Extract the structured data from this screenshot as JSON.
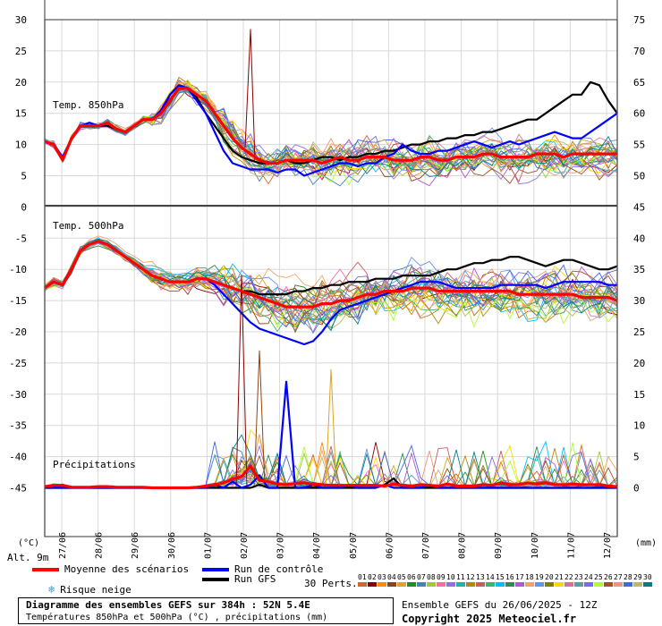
{
  "chart_data": {
    "type": "line",
    "title": "Diagramme des ensembles GEFS sur 384h : 52N 5.4E",
    "subtitle": "Températures 850hPa et 500hPa (°C) , précipitations (mm)",
    "run": "Ensemble GEFS du 26/06/2025 - 12Z",
    "copyright": "Copyright 2025 Meteociel.fr",
    "left_unit": "(°C)",
    "right_unit": "(mm)",
    "altitude": "Alt. 9m",
    "left_ticks": [
      30,
      25,
      20,
      15,
      10,
      5,
      0,
      -5,
      -10,
      -15,
      -20,
      -25,
      -30,
      -35,
      -40,
      -45
    ],
    "right_ticks": [
      75,
      70,
      65,
      60,
      55,
      50,
      45,
      40,
      35,
      30,
      25,
      20,
      15,
      10,
      5,
      0
    ],
    "date_labels": [
      "27/06",
      "28/06",
      "29/06",
      "30/06",
      "01/07",
      "02/07",
      "03/07",
      "04/07",
      "05/07",
      "06/07",
      "07/07",
      "08/07",
      "09/07",
      "10/07",
      "11/07",
      "12/07"
    ],
    "panels": [
      {
        "label": "Temp. 850hPa",
        "ylim": [
          0,
          30
        ],
        "unit": "°C"
      },
      {
        "label": "Temp. 500hPa",
        "ylim": [
          -45,
          -5
        ],
        "unit": "°C"
      },
      {
        "label": "Précipitations",
        "ylim": [
          0,
          75
        ],
        "unit": "mm"
      }
    ],
    "series_t850": [
      {
        "name": "Moyenne des scénarios",
        "color": "#ff0000",
        "values": [
          10.5,
          10,
          7.5,
          11,
          13,
          13,
          13,
          13.5,
          12.5,
          12,
          13,
          14,
          14,
          15,
          17,
          19,
          19,
          18,
          17,
          15,
          13,
          11,
          9.5,
          8.5,
          7.5,
          7,
          7,
          7.5,
          7.5,
          7.5,
          7.5,
          7,
          7.5,
          8,
          7.5,
          7.5,
          8,
          8,
          8,
          7.5,
          7.5,
          7.5,
          8,
          8,
          7.5,
          7.5,
          8,
          8,
          8,
          8.5,
          8.5,
          8,
          8,
          8,
          8,
          8.5,
          8.5,
          8.5,
          8,
          8.5,
          8.5,
          8.5,
          8.5,
          8.5,
          8.5
        ]
      },
      {
        "name": "Run de contrôle",
        "color": "#0000ff",
        "values": [
          10.5,
          10,
          8,
          11,
          13,
          13.5,
          13,
          13.5,
          12.5,
          12,
          13,
          14,
          14,
          15.5,
          18,
          19.5,
          19,
          17,
          15,
          12,
          9,
          7,
          6.5,
          6,
          6,
          6,
          5.5,
          6,
          6,
          5,
          5.5,
          6,
          6.5,
          7,
          7,
          6.5,
          7,
          7,
          8,
          8.5,
          10,
          9,
          8.5,
          8.5,
          9,
          9,
          9.5,
          10,
          10.5,
          10,
          9.5,
          10,
          10.5,
          10,
          10.5,
          11,
          11.5,
          12,
          11.5,
          11,
          11,
          12,
          13,
          14,
          15
        ]
      },
      {
        "name": "Run GFS",
        "color": "#000000",
        "values": [
          10.5,
          10,
          8,
          11,
          13,
          13,
          13,
          13,
          12.5,
          12,
          13,
          14,
          14,
          15,
          18,
          19.5,
          19,
          17.5,
          15,
          13,
          11,
          9,
          8,
          7.5,
          7,
          7,
          7,
          7.5,
          7,
          7,
          7.5,
          8,
          8,
          7.5,
          8,
          8,
          8.5,
          8.5,
          9,
          9,
          9.5,
          10,
          10,
          10.5,
          10.5,
          11,
          11,
          11.5,
          11.5,
          12,
          12,
          12.5,
          13,
          13.5,
          14,
          14,
          15,
          16,
          17,
          18,
          18,
          20,
          19.5,
          17,
          15
        ]
      }
    ],
    "series_t500": [
      {
        "name": "Moyenne des scénarios",
        "color": "#ff0000",
        "values": [
          -13,
          -12,
          -12.5,
          -10,
          -7,
          -6,
          -5.5,
          -6,
          -7,
          -8,
          -9,
          -10,
          -11,
          -11.5,
          -12,
          -12,
          -12,
          -11.5,
          -11.5,
          -12,
          -12.5,
          -13,
          -13.5,
          -14,
          -14.5,
          -15,
          -15.5,
          -16,
          -16,
          -16,
          -16,
          -15.5,
          -15.5,
          -15,
          -15,
          -14.5,
          -14,
          -14,
          -13.5,
          -13.5,
          -13.5,
          -13,
          -13,
          -13,
          -13.5,
          -13.5,
          -13.5,
          -13.5,
          -13.5,
          -13.5,
          -13.5,
          -13.5,
          -13.5,
          -14,
          -14,
          -14,
          -14,
          -14,
          -14,
          -14,
          -14.5,
          -14.5,
          -14.5,
          -14.5,
          -15
        ]
      },
      {
        "name": "Run de contrôle",
        "color": "#0000ff",
        "values": [
          -13,
          -12,
          -12.5,
          -10,
          -7,
          -6,
          -5.5,
          -6,
          -7,
          -8,
          -9,
          -10,
          -11,
          -11.5,
          -12,
          -12,
          -12,
          -11.5,
          -11.5,
          -12.5,
          -14,
          -15.5,
          -17,
          -18.5,
          -19.5,
          -20,
          -20.5,
          -21,
          -21.5,
          -22,
          -21.5,
          -20,
          -18,
          -16.5,
          -16,
          -15.5,
          -15,
          -14.5,
          -14,
          -13.5,
          -13,
          -12.5,
          -12,
          -12,
          -12,
          -12.5,
          -13,
          -13,
          -13,
          -13,
          -13,
          -12.5,
          -12.5,
          -12.5,
          -12.5,
          -12.5,
          -13,
          -12.5,
          -12,
          -12,
          -12,
          -12,
          -12,
          -12.5,
          -12.5
        ]
      },
      {
        "name": "Run GFS",
        "color": "#000000",
        "values": [
          -13,
          -12,
          -12.5,
          -10,
          -7,
          -6,
          -5.5,
          -6,
          -7,
          -8,
          -9,
          -10,
          -11,
          -11.5,
          -12,
          -12,
          -12,
          -11.5,
          -11.5,
          -12,
          -12.5,
          -13,
          -13.5,
          -13.5,
          -14,
          -14,
          -14,
          -14,
          -13.5,
          -13.5,
          -13,
          -13,
          -12.5,
          -12.5,
          -12,
          -12,
          -12,
          -11.5,
          -11.5,
          -11.5,
          -11,
          -11,
          -11,
          -11,
          -10.5,
          -10,
          -10,
          -9.5,
          -9,
          -9,
          -8.5,
          -8.5,
          -8,
          -8,
          -8.5,
          -9,
          -9.5,
          -9,
          -8.5,
          -8.5,
          -9,
          -9.5,
          -10,
          -10,
          -9.5
        ]
      }
    ],
    "series_precip": [
      {
        "name": "Moyenne des scénarios",
        "color": "#ff0000",
        "values": [
          0.2,
          0.4,
          0.4,
          0.1,
          0.1,
          0.1,
          0.2,
          0.2,
          0.1,
          0.1,
          0.1,
          0.1,
          0,
          0,
          0,
          0,
          0,
          0.1,
          0.3,
          0.5,
          0.8,
          1.4,
          1.8,
          3.5,
          1.2,
          1,
          0.6,
          0.5,
          0.7,
          0.8,
          0.6,
          0.5,
          0.4,
          0.4,
          0.4,
          0.4,
          0.4,
          0.4,
          0.3,
          0.6,
          0.4,
          0.3,
          0.5,
          0.4,
          0.3,
          0.6,
          0.3,
          0.3,
          0.3,
          0.5,
          0.4,
          0.8,
          0.5,
          0.5,
          0.8,
          0.6,
          0.8,
          0.5,
          0.5,
          0.6,
          0.5,
          0.5,
          0.5,
          0.3,
          0.2
        ]
      },
      {
        "name": "Run de contrôle",
        "color": "#0000ff",
        "values": [
          0,
          0,
          0,
          0,
          0,
          0,
          0,
          0,
          0,
          0,
          0,
          0,
          0,
          0,
          0,
          0,
          0,
          0,
          0,
          0.5,
          0,
          1,
          0,
          0.5,
          2,
          0,
          0,
          17,
          0,
          0,
          0.5,
          0,
          0,
          0,
          0.5,
          0,
          0,
          0,
          0.5,
          0,
          0,
          0,
          0,
          0.5,
          0,
          0,
          0,
          0,
          0,
          0,
          0,
          0,
          0,
          0,
          0,
          0,
          0,
          0,
          0,
          0,
          0,
          0,
          0,
          0,
          0
        ]
      },
      {
        "name": "Run GFS",
        "color": "#000000",
        "values": [
          0,
          0,
          0,
          0,
          0,
          0,
          0,
          0,
          0,
          0,
          0,
          0,
          0,
          0,
          0,
          0,
          0,
          0,
          0,
          0,
          0,
          0,
          0,
          0,
          0.5,
          0,
          0,
          0,
          0,
          0,
          0,
          0,
          0,
          0,
          0,
          0,
          0,
          0,
          0.5,
          1.5,
          0,
          0,
          0,
          0,
          0,
          0,
          0,
          0,
          0,
          0,
          0,
          0,
          0,
          0,
          0,
          0,
          0,
          0,
          0,
          0,
          0,
          0,
          0,
          0,
          0
        ]
      }
    ],
    "perturbation_spikes": [
      {
        "member": "02",
        "step": 23,
        "t850": 28.5
      },
      {
        "member": "02",
        "step": 22,
        "precip": 34
      },
      {
        "member": "05",
        "step": 32,
        "precip": 19
      },
      {
        "member": "04",
        "step": 24,
        "precip": 22
      }
    ],
    "grid": true
  },
  "legend": {
    "mean_label": "Moyenne des scénarios",
    "control_label": "Run de contrôle",
    "gfs_label": "Run GFS",
    "snow_label": "Risque neige",
    "snow_icon": "snowflake-icon",
    "perts_label": "30 Perts.",
    "mean_color": "#ff0000",
    "control_color": "#0000ff",
    "gfs_color": "#000000"
  },
  "members": [
    {
      "id": "01",
      "color": "#d2691e"
    },
    {
      "id": "02",
      "color": "#8b0000"
    },
    {
      "id": "03",
      "color": "#ff8c00"
    },
    {
      "id": "04",
      "color": "#8b4513"
    },
    {
      "id": "05",
      "color": "#daa520"
    },
    {
      "id": "06",
      "color": "#228b22"
    },
    {
      "id": "07",
      "color": "#4682b4"
    },
    {
      "id": "08",
      "color": "#9acd32"
    },
    {
      "id": "09",
      "color": "#ff69b4"
    },
    {
      "id": "10",
      "color": "#9370db"
    },
    {
      "id": "11",
      "color": "#20b2aa"
    },
    {
      "id": "12",
      "color": "#b8860b"
    },
    {
      "id": "13",
      "color": "#cd5c5c"
    },
    {
      "id": "14",
      "color": "#3cb371"
    },
    {
      "id": "15",
      "color": "#00bfff"
    },
    {
      "id": "16",
      "color": "#2e8b57"
    },
    {
      "id": "17",
      "color": "#ba55d3"
    },
    {
      "id": "18",
      "color": "#f4a460"
    },
    {
      "id": "19",
      "color": "#6495ed"
    },
    {
      "id": "20",
      "color": "#808000"
    },
    {
      "id": "21",
      "color": "#ffd700"
    },
    {
      "id": "22",
      "color": "#db7093"
    },
    {
      "id": "23",
      "color": "#5f9ea0"
    },
    {
      "id": "24",
      "color": "#7b68ee"
    },
    {
      "id": "25",
      "color": "#adff2f"
    },
    {
      "id": "26",
      "color": "#a0522d"
    },
    {
      "id": "27",
      "color": "#e9967a"
    },
    {
      "id": "28",
      "color": "#4169e1"
    },
    {
      "id": "29",
      "color": "#bdb76b"
    },
    {
      "id": "30",
      "color": "#008080"
    }
  ]
}
